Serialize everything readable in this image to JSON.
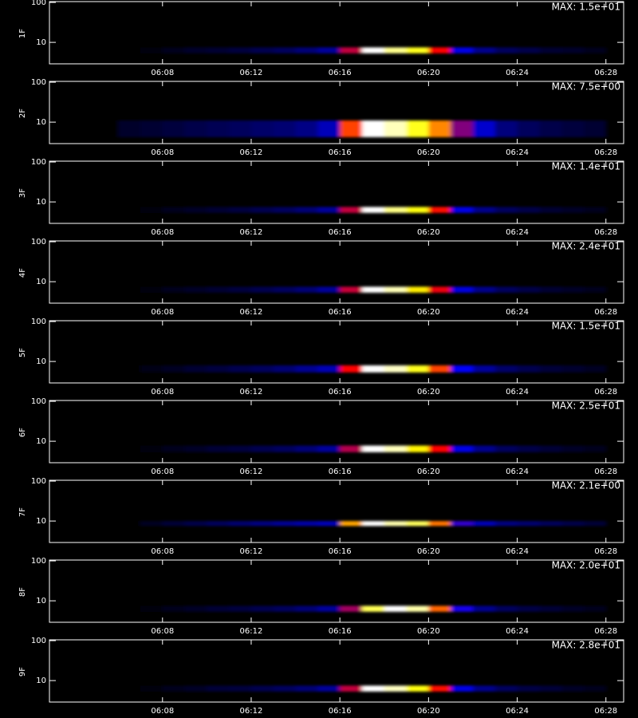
{
  "axes": {
    "xlim": [
      2.9,
      28.8
    ],
    "xticks": [
      {
        "value": 8,
        "label": "06:08"
      },
      {
        "value": 12,
        "label": "06:12"
      },
      {
        "value": 16,
        "label": "06:16"
      },
      {
        "value": 20,
        "label": "06:20"
      },
      {
        "value": 24,
        "label": "06:24"
      },
      {
        "value": 28,
        "label": "06:28"
      }
    ],
    "ylim": [
      2.9,
      105
    ],
    "yticks": [
      10,
      100
    ],
    "log_y": true,
    "bins": [
      3,
      4,
      5,
      6,
      7,
      8,
      9,
      10,
      11,
      12,
      13,
      14,
      15,
      16,
      17,
      18,
      19,
      20,
      21,
      22,
      23,
      24,
      25,
      26,
      27,
      28
    ]
  },
  "chart_data": [
    {
      "type": "heatmap",
      "ylabel": "1F",
      "max": {
        "value": 15,
        "label": "MAX: 1.5e+01"
      },
      "band": [
        5.3,
        7.5
      ],
      "values": [
        0,
        0,
        0,
        0,
        0.3,
        0.6,
        0.8,
        1,
        1.2,
        1.5,
        1.8,
        2.3,
        3,
        8,
        15,
        14,
        13,
        9,
        4.5,
        2.7,
        1.8,
        1.4,
        1,
        0.8,
        0.6
      ]
    },
    {
      "type": "heatmap",
      "ylabel": "2F",
      "max": {
        "value": 7.5,
        "label": "MAX: 7.5e+00"
      },
      "band": [
        4.2,
        11
      ],
      "values": [
        0,
        0,
        0,
        0.4,
        0.5,
        0.6,
        0.7,
        0.8,
        0.9,
        1,
        1.1,
        1.3,
        1.8,
        5,
        7.5,
        7.2,
        6.5,
        5.5,
        3.5,
        2,
        1.2,
        0.9,
        0.7,
        0.6,
        0.5
      ]
    },
    {
      "type": "heatmap",
      "ylabel": "3F",
      "max": {
        "value": 14,
        "label": "MAX: 1.4e+01"
      },
      "band": [
        5.3,
        7.5
      ],
      "values": [
        0,
        0,
        0,
        0,
        0.3,
        0.5,
        0.7,
        0.9,
        1.1,
        1.4,
        1.7,
        2.1,
        2.8,
        7.5,
        14,
        13,
        12,
        8.5,
        4.2,
        2.5,
        1.7,
        1.3,
        0.9,
        0.7,
        0.5
      ]
    },
    {
      "type": "heatmap",
      "ylabel": "4F",
      "max": {
        "value": 24,
        "label": "MAX: 2.4e+01"
      },
      "band": [
        5.3,
        7.5
      ],
      "values": [
        0,
        0,
        0,
        0,
        0.5,
        0.9,
        1.2,
        1.6,
        1.9,
        2.4,
        2.9,
        3.6,
        4.8,
        13,
        24,
        23,
        20,
        14,
        7,
        4.3,
        2.9,
        2.2,
        1.6,
        1.2,
        0.9
      ]
    },
    {
      "type": "heatmap",
      "ylabel": "5F",
      "max": {
        "value": 15,
        "label": "MAX: 1.5e+01"
      },
      "band": [
        5.3,
        8
      ],
      "values": [
        0,
        0,
        0,
        0,
        0.4,
        0.7,
        1,
        1.2,
        1.5,
        1.8,
        2.2,
        2.8,
        3.5,
        9,
        15,
        14.5,
        13,
        10,
        5,
        3,
        2,
        1.5,
        1.1,
        0.9,
        0.7
      ]
    },
    {
      "type": "heatmap",
      "ylabel": "6F",
      "max": {
        "value": 25,
        "label": "MAX: 2.5e+01"
      },
      "band": [
        5.3,
        7.8
      ],
      "values": [
        0,
        0,
        0,
        0,
        0.5,
        1,
        1.3,
        1.7,
        2,
        2.5,
        3,
        3.8,
        5,
        13,
        25,
        24,
        21,
        15,
        7.5,
        4.5,
        3,
        2.3,
        1.7,
        1.3,
        1
      ]
    },
    {
      "type": "heatmap",
      "ylabel": "7F",
      "max": {
        "value": 2.1,
        "label": "MAX: 2.1e+00"
      },
      "band": [
        7.5,
        10
      ],
      "values": [
        0,
        0,
        0,
        0,
        0.1,
        0.15,
        0.2,
        0.25,
        0.3,
        0.35,
        0.4,
        0.45,
        0.5,
        1.6,
        2.1,
        2,
        1.9,
        1.5,
        0.8,
        0.5,
        0.35,
        0.3,
        0.25,
        0.2,
        0.15
      ]
    },
    {
      "type": "heatmap",
      "ylabel": "8F",
      "max": {
        "value": 20,
        "label": "MAX: 2.0e+01"
      },
      "band": [
        5.3,
        7.5
      ],
      "values": [
        0,
        0,
        0,
        0,
        0.4,
        0.8,
        1,
        1.4,
        1.6,
        2,
        2.4,
        3,
        4,
        10,
        18,
        20,
        19,
        14,
        7,
        3.6,
        2.4,
        1.8,
        1.4,
        1,
        0.8
      ]
    },
    {
      "type": "heatmap",
      "ylabel": "9F",
      "max": {
        "value": 28,
        "label": "MAX: 2.8e+01"
      },
      "band": [
        5.3,
        7.5
      ],
      "values": [
        0,
        0,
        0,
        0,
        0.6,
        1.1,
        1.4,
        2,
        2.2,
        2.8,
        3.4,
        4.2,
        5.6,
        15,
        28,
        27,
        24,
        17,
        8.4,
        5,
        3.4,
        2.5,
        2,
        1.4,
        1.1
      ]
    }
  ]
}
